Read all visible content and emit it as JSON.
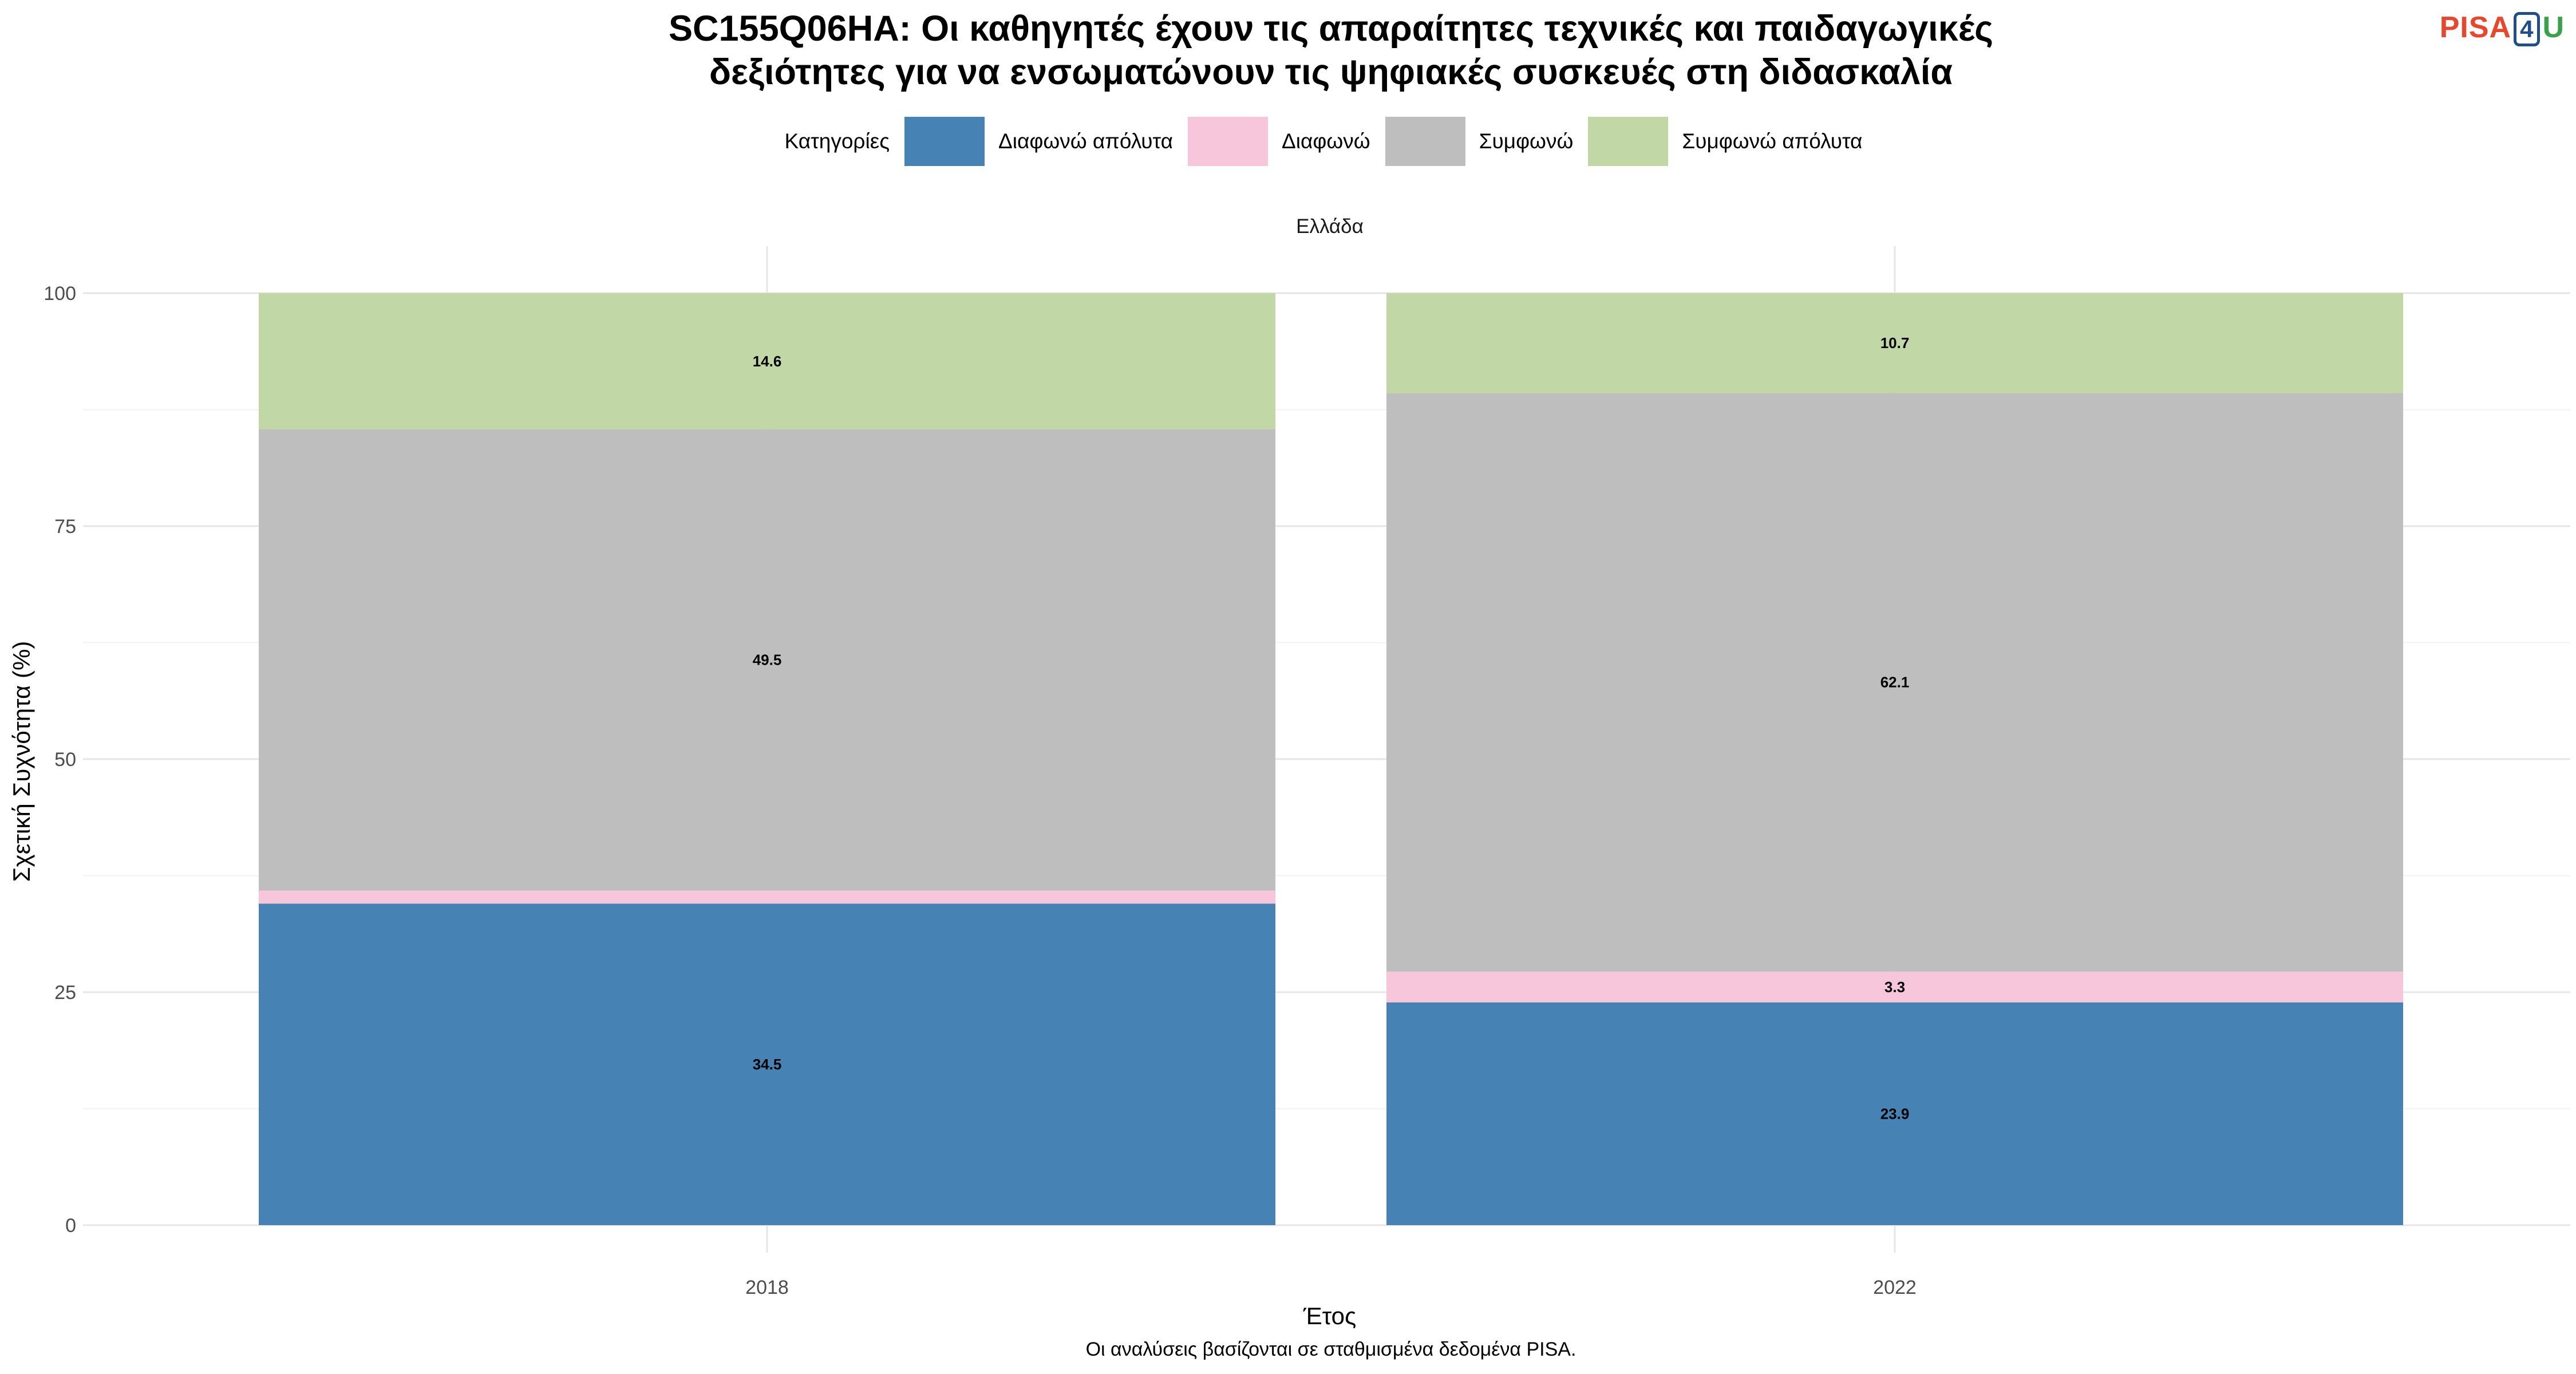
{
  "title": {
    "line1": "SC155Q06HA: Οι καθηγητές έχουν τις απαραίτητες τεχνικές και παιδαγωγικές",
    "line2": "δεξιότητες για να ενσωματώνουν τις ψηφιακές συσκευές στη διδασκαλία"
  },
  "logo": {
    "part1": "PISA",
    "part2": "4",
    "part3": "U"
  },
  "legend": {
    "title": "Κατηγορίες",
    "items": [
      {
        "label": "Διαφωνώ απόλυτα",
        "color": "#4682b4"
      },
      {
        "label": "Διαφωνώ",
        "color": "#f7c6da"
      },
      {
        "label": "Συμφωνώ",
        "color": "#bebebe"
      },
      {
        "label": "Συμφωνώ απόλυτα",
        "color": "#c2d7a6"
      }
    ]
  },
  "caption": "Οι αναλύσεις βασίζονται σε σταθμισμένα δεδομένα PISA.",
  "chart_data": {
    "type": "bar",
    "stacked": true,
    "facet": "Ελλάδα",
    "categories": [
      "2018",
      "2022"
    ],
    "xlabel": "Έτος",
    "ylabel": "Σχετική Συχνότητα (%)",
    "ylim": [
      0,
      100
    ],
    "yticks": [
      0,
      25,
      50,
      75,
      100
    ],
    "grid": true,
    "legend_position": "top",
    "series": [
      {
        "name": "Διαφωνώ απόλυτα",
        "values": [
          34.5,
          23.9
        ],
        "labels": [
          "34.5",
          "23.9"
        ],
        "color": "#4682b4"
      },
      {
        "name": "Διαφωνώ",
        "values": [
          1.4,
          3.3
        ],
        "labels": [
          "",
          "3.3"
        ],
        "color": "#f7c6da"
      },
      {
        "name": "Συμφωνώ",
        "values": [
          49.5,
          62.1
        ],
        "labels": [
          "49.5",
          "62.1"
        ],
        "color": "#bebebe"
      },
      {
        "name": "Συμφωνώ απόλυτα",
        "values": [
          14.6,
          10.7
        ],
        "labels": [
          "14.6",
          "10.7"
        ],
        "color": "#c2d7a6"
      }
    ]
  }
}
